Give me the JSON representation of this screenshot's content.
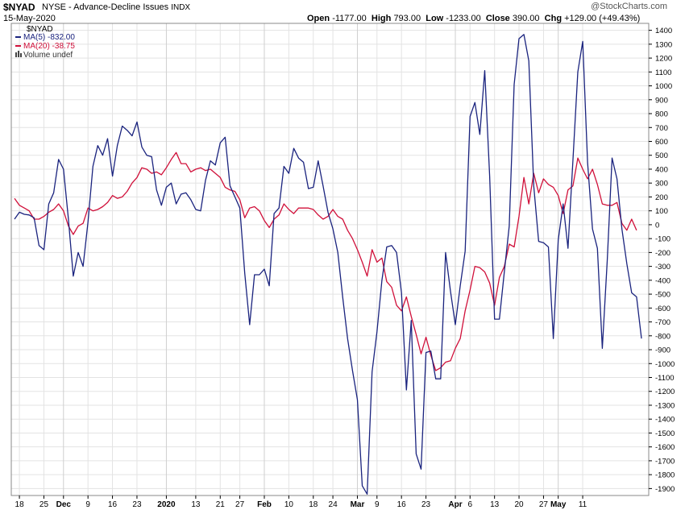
{
  "header": {
    "symbol": "$NYAD",
    "description": "NYSE - Advance-Decline Issues",
    "exchange": "INDX",
    "date": "15-May-2020",
    "brand": "@StockCharts.com",
    "open_label": "Open",
    "open_value": "-1177.00",
    "high_label": "High",
    "high_value": "793.00",
    "low_label": "Low",
    "low_value": "-1233.00",
    "close_label": "Close",
    "close_value": "390.00",
    "chg_label": "Chg",
    "chg_value": "+129.00 (+49.43%)"
  },
  "legend": {
    "symbol": "$NYAD",
    "ma5": "MA(5) -832.00",
    "ma20": "MA(20) -38.75",
    "volume": "Volume undef"
  },
  "colors": {
    "ma5": "#1a237e",
    "ma20": "#d0103a",
    "grid": "#e3e3e3",
    "axis": "#000000"
  },
  "chart_data": {
    "type": "line",
    "ylim": [
      -1950,
      1450
    ],
    "y_ticks": [
      1400,
      1300,
      1200,
      1100,
      1000,
      900,
      800,
      700,
      600,
      500,
      400,
      300,
      200,
      100,
      0,
      -100,
      -200,
      -300,
      -400,
      -500,
      -600,
      -700,
      -800,
      -900,
      -1000,
      -1100,
      -1200,
      -1300,
      -1400,
      -1500,
      -1600,
      -1700,
      -1800,
      -1900
    ],
    "x_ticks": [
      {
        "i": 1,
        "label": "18",
        "bold": false
      },
      {
        "i": 6,
        "label": "25",
        "bold": false
      },
      {
        "i": 10,
        "label": "Dec",
        "bold": true
      },
      {
        "i": 15,
        "label": "9",
        "bold": false
      },
      {
        "i": 20,
        "label": "16",
        "bold": false
      },
      {
        "i": 25,
        "label": "23",
        "bold": false
      },
      {
        "i": 31,
        "label": "2020",
        "bold": true
      },
      {
        "i": 37,
        "label": "13",
        "bold": false
      },
      {
        "i": 42,
        "label": "21",
        "bold": false
      },
      {
        "i": 46,
        "label": "27",
        "bold": false
      },
      {
        "i": 51,
        "label": "Feb",
        "bold": true
      },
      {
        "i": 56,
        "label": "10",
        "bold": false
      },
      {
        "i": 61,
        "label": "18",
        "bold": false
      },
      {
        "i": 65,
        "label": "24",
        "bold": false
      },
      {
        "i": 70,
        "label": "Mar",
        "bold": true
      },
      {
        "i": 74,
        "label": "9",
        "bold": false
      },
      {
        "i": 79,
        "label": "16",
        "bold": false
      },
      {
        "i": 84,
        "label": "23",
        "bold": false
      },
      {
        "i": 90,
        "label": "Apr",
        "bold": true
      },
      {
        "i": 93,
        "label": "6",
        "bold": false
      },
      {
        "i": 98,
        "label": "13",
        "bold": false
      },
      {
        "i": 103,
        "label": "20",
        "bold": false
      },
      {
        "i": 108,
        "label": "27",
        "bold": false
      },
      {
        "i": 111,
        "label": "May",
        "bold": true
      },
      {
        "i": 116,
        "label": "11",
        "bold": false
      }
    ],
    "series": [
      {
        "name": "MA(5) -832.00",
        "values": [
          40,
          90,
          75,
          70,
          50,
          -150,
          -180,
          150,
          230,
          470,
          400,
          40,
          -370,
          -200,
          -300,
          20,
          420,
          570,
          500,
          620,
          350,
          570,
          710,
          680,
          640,
          740,
          560,
          500,
          490,
          250,
          140,
          270,
          300,
          150,
          220,
          230,
          180,
          110,
          100,
          320,
          460,
          430,
          590,
          630,
          280,
          200,
          120,
          -350,
          -720,
          -360,
          -360,
          -320,
          -440,
          80,
          120,
          420,
          370,
          550,
          480,
          450,
          260,
          270,
          460,
          280,
          90,
          -30,
          -200,
          -520,
          -820,
          -1050,
          -1260,
          -1880,
          -1940,
          -1060,
          -770,
          -400,
          -160,
          -150,
          -200,
          -490,
          -1190,
          -690,
          -1650,
          -1760,
          -920,
          -910,
          -1110,
          -1110,
          -200,
          -480,
          -720,
          -440,
          -190,
          780,
          880,
          650,
          1110,
          350,
          -680,
          -680,
          -340,
          -10,
          1010,
          1340,
          1370,
          1180,
          280,
          -120,
          -130,
          -160,
          -820,
          -110,
          150,
          -170,
          460,
          1100,
          1320,
          450,
          -30,
          -170,
          -890,
          -260,
          480,
          330,
          -30,
          -280,
          -490,
          -520,
          -820
        ],
        "color_key": "ma5"
      },
      {
        "name": "MA(20) -38.75",
        "values": [
          190,
          140,
          120,
          100,
          40,
          40,
          60,
          90,
          110,
          150,
          100,
          -10,
          -70,
          -10,
          10,
          120,
          100,
          110,
          130,
          160,
          210,
          190,
          200,
          240,
          300,
          340,
          410,
          400,
          370,
          380,
          360,
          410,
          470,
          520,
          440,
          440,
          380,
          400,
          410,
          390,
          400,
          370,
          340,
          270,
          250,
          240,
          180,
          50,
          120,
          130,
          100,
          30,
          -20,
          40,
          70,
          150,
          110,
          80,
          120,
          120,
          120,
          110,
          70,
          40,
          60,
          110,
          60,
          40,
          -40,
          -100,
          -180,
          -270,
          -370,
          -180,
          -270,
          -240,
          -410,
          -450,
          -580,
          -620,
          -520,
          -660,
          -790,
          -930,
          -810,
          -940,
          -1050,
          -1030,
          -990,
          -980,
          -890,
          -820,
          -620,
          -470,
          -300,
          -310,
          -340,
          -420,
          -580,
          -380,
          -300,
          -140,
          -160,
          60,
          340,
          150,
          370,
          230,
          330,
          290,
          270,
          210,
          80,
          250,
          280,
          480,
          400,
          330,
          400,
          290,
          150,
          140,
          140,
          160,
          10,
          -40,
          40,
          -40
        ]
      }
    ]
  }
}
